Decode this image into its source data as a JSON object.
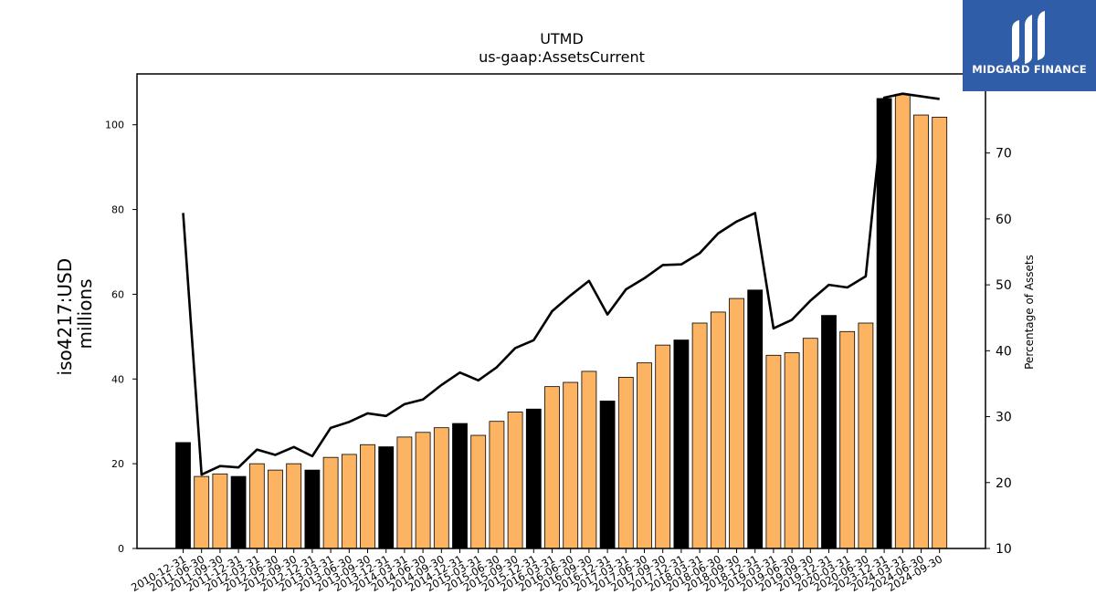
{
  "chart_data": {
    "type": "bar",
    "title": "UTMD",
    "subtitle": "us-gaap:AssetsCurrent",
    "ylabel": "iso4217:USD",
    "ylabel2": "millions",
    "y2label": "Percentage of Assets",
    "ylim": [
      0,
      112
    ],
    "y_ticks": [
      0,
      20,
      40,
      60,
      80,
      100
    ],
    "y2lim": [
      10,
      82
    ],
    "y2_ticks": [
      10,
      20,
      30,
      40,
      50,
      60,
      70
    ],
    "highlight_color": "#000000",
    "bar_color": "#fdb462",
    "line_color": "#000000",
    "categories": [
      "2010-12-31",
      "2011-06-30",
      "2011-09-30",
      "2011-12-31",
      "2012-03-31",
      "2012-06-30",
      "2012-09-30",
      "2012-12-31",
      "2013-03-31",
      "2013-06-30",
      "2013-09-30",
      "2013-12-31",
      "2014-03-31",
      "2014-06-30",
      "2014-09-30",
      "2014-12-31",
      "2015-03-31",
      "2015-06-30",
      "2015-09-30",
      "2015-12-31",
      "2016-03-31",
      "2016-06-30",
      "2016-09-30",
      "2016-12-31",
      "2017-03-31",
      "2017-06-30",
      "2017-09-30",
      "2017-12-31",
      "2018-03-31",
      "2018-06-30",
      "2018-09-30",
      "2018-12-31",
      "2019-03-31",
      "2019-06-30",
      "2019-09-30",
      "2019-12-31",
      "2020-03-31",
      "2020-06-30",
      "2023-12-31",
      "2024-03-31",
      "2024-06-30",
      "2024-09-30"
    ],
    "series": [
      {
        "kind": "bar",
        "values": [
          25.0,
          17.0,
          17.6,
          17.0,
          20.0,
          18.5,
          20.0,
          18.5,
          21.5,
          22.2,
          24.5,
          24.0,
          26.3,
          27.4,
          28.5,
          29.5,
          26.7,
          30.0,
          32.2,
          32.9,
          38.2,
          39.2,
          41.8,
          34.8,
          40.4,
          43.8,
          48.0,
          49.2,
          53.2,
          55.8,
          59.0,
          61.0,
          45.6,
          46.2,
          49.6,
          55.0,
          51.2,
          53.2,
          106.2,
          107.2,
          102.3,
          101.8
        ],
        "highlight": [
          true,
          false,
          false,
          true,
          false,
          false,
          false,
          true,
          false,
          false,
          false,
          true,
          false,
          false,
          false,
          true,
          false,
          false,
          false,
          true,
          false,
          false,
          false,
          true,
          false,
          false,
          false,
          true,
          false,
          false,
          false,
          true,
          false,
          false,
          false,
          true,
          false,
          false,
          true,
          false,
          false,
          false
        ]
      },
      {
        "kind": "line",
        "axis": "right",
        "values": [
          60.9,
          21.2,
          22.5,
          22.3,
          25.0,
          24.2,
          25.4,
          24.0,
          28.3,
          29.2,
          30.5,
          30.1,
          31.9,
          32.6,
          34.8,
          36.7,
          35.5,
          37.5,
          40.4,
          41.6,
          46.0,
          48.4,
          50.6,
          45.5,
          49.3,
          51.0,
          53.0,
          53.1,
          54.8,
          57.8,
          59.6,
          60.9,
          43.4,
          44.7,
          47.6,
          50.0,
          49.6,
          51.3,
          78.4,
          79.0,
          78.6,
          78.2
        ]
      }
    ]
  },
  "logo": {
    "text": "MIDGARD FINANCE"
  }
}
